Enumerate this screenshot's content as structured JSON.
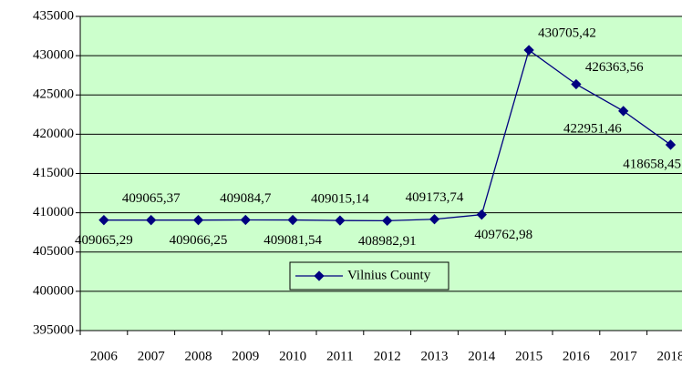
{
  "chart_data": {
    "type": "line",
    "categories": [
      "2006",
      "2007",
      "2008",
      "2009",
      "2010",
      "2011",
      "2012",
      "2013",
      "2014",
      "2015",
      "2016",
      "2017",
      "2018"
    ],
    "series": [
      {
        "name": "Vilnius County",
        "color": "#000080",
        "values": [
          409065.29,
          409065.37,
          409066.25,
          409084.7,
          409081.54,
          409015.14,
          408982.91,
          409173.74,
          409762.98,
          430705.42,
          426363.56,
          422951.46,
          418658.45
        ],
        "value_labels": [
          "409065,29",
          "409065,37",
          "409066,25",
          "409084,7",
          "409081,54",
          "409015,14",
          "408982,91",
          "409173,74",
          "409762,98",
          "430705,42",
          "426363,56",
          "422951,46",
          "418658,45"
        ]
      }
    ],
    "ylim": [
      395000,
      435000
    ],
    "yticks": [
      395000,
      400000,
      405000,
      410000,
      415000,
      420000,
      425000,
      430000,
      435000
    ],
    "grid": true,
    "plot_background": "#ccffcc",
    "legend": "bottom"
  }
}
